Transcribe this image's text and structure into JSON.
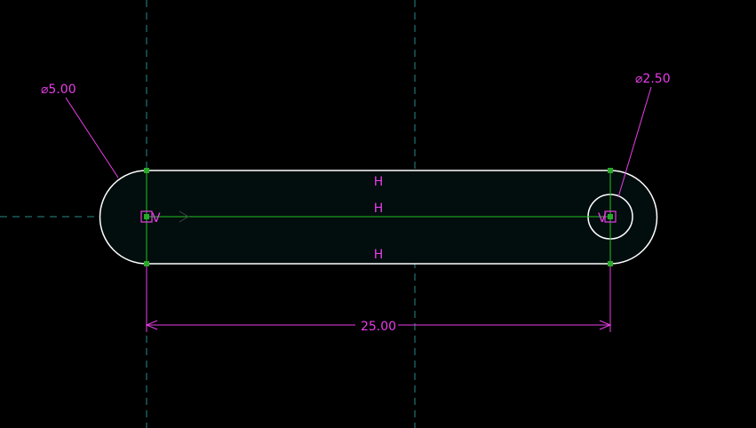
{
  "colors": {
    "background": "#000000",
    "profile_fill": "#020d0d",
    "profile_stroke": "#ffffff",
    "centerline": "#2a8a8a",
    "construction": "#22c122",
    "dimension": "#e83ee8",
    "node": "#2aa82a"
  },
  "dimensions": {
    "dia_large": "⌀5.00",
    "dia_small": "⌀2.50",
    "length": "25.00"
  },
  "constraints": {
    "h_top": "H",
    "h_mid": "H",
    "h_bottom": "H",
    "v_left": "V",
    "v_right": "V"
  }
}
